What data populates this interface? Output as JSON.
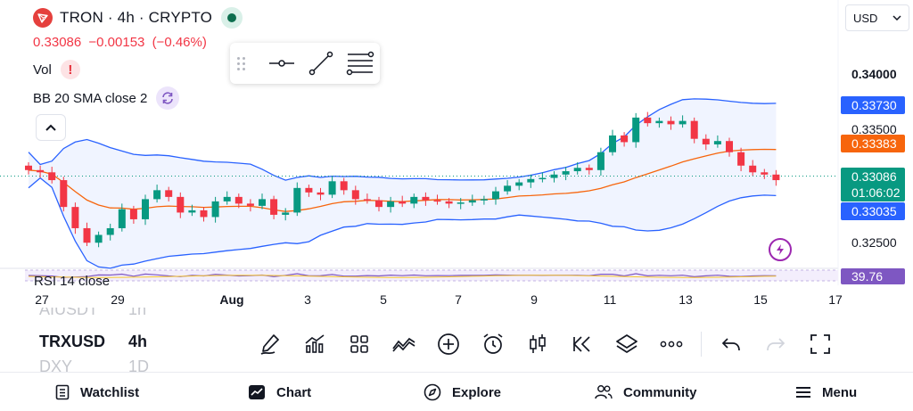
{
  "header": {
    "symbol_title": "TRON · 4h · CRYPTO",
    "last_price": "0.33086",
    "change": "−0.00153",
    "change_percent": "(−0.46%)",
    "currency": "USD"
  },
  "indicators": {
    "volume_label": "Vol",
    "bollinger_label": "BB 20 SMA close 2",
    "rsi_label": "RSI 14 close"
  },
  "price_axis": {
    "labels": [
      "0.34000",
      "0.33500",
      "0.32500"
    ],
    "tag_upper": "0.33730",
    "tag_basis": "0.33383",
    "tag_last": "0.33086",
    "tag_countdown": "01:06:02",
    "tag_lower": "0.33035",
    "tag_rsi": "39.76"
  },
  "time_axis": {
    "labels": [
      "27",
      "29",
      "Aug",
      "3",
      "5",
      "7",
      "9",
      "11",
      "13",
      "15",
      "17"
    ]
  },
  "symbol_picker": {
    "prev_symbol": "AIUSDT",
    "prev_interval": "1h",
    "active_symbol": "TRXUSD",
    "active_interval": "4h",
    "next_symbol": "DXY",
    "next_interval": "1D"
  },
  "bottom_toolbar": {
    "icons": [
      "pen-draw-icon",
      "indicators-icon",
      "layouts-icon",
      "compare-icon",
      "add-icon",
      "alert-icon",
      "chart-type-icon",
      "replay-icon",
      "layers-icon",
      "more-icon",
      "undo-icon",
      "redo-icon",
      "fullscreen-icon"
    ]
  },
  "nav": {
    "watchlist": "Watchlist",
    "chart": "Chart",
    "explore": "Explore",
    "community": "Community",
    "menu": "Menu"
  },
  "colors": {
    "up": "#089981",
    "down": "#f23645",
    "bb_band": "#2962ff",
    "bb_basis": "#f7650c",
    "rsi": "#7e57c2"
  },
  "chart_data": {
    "type": "candlestick",
    "title": "TRON · 4h · CRYPTO",
    "y_axis_ticks": [
      0.34,
      0.335,
      0.325
    ],
    "x_axis_ticks": [
      "27",
      "29",
      "Aug",
      "3",
      "5",
      "7",
      "9",
      "11",
      "13",
      "15",
      "17"
    ],
    "last_close": 0.33086,
    "overlays": [
      {
        "name": "BB 20 SMA close 2 upper",
        "last": 0.3373
      },
      {
        "name": "BB 20 SMA close 2 basis",
        "last": 0.33383
      },
      {
        "name": "BB 20 SMA close 2 lower",
        "last": 0.33035
      }
    ],
    "rsi_last": 39.76,
    "candles_close": [
      0.3314,
      0.3312,
      0.3305,
      0.3281,
      0.3262,
      0.3249,
      0.3256,
      0.3262,
      0.3279,
      0.327,
      0.3288,
      0.3296,
      0.329,
      0.3276,
      0.3278,
      0.3272,
      0.3286,
      0.329,
      0.3284,
      0.3282,
      0.3288,
      0.3274,
      0.3276,
      0.3298,
      0.3294,
      0.3292,
      0.3304,
      0.3296,
      0.3288,
      0.3287,
      0.3281,
      0.3286,
      0.3284,
      0.329,
      0.3287,
      0.3286,
      0.3284,
      0.3285,
      0.3287,
      0.3288,
      0.3295,
      0.33,
      0.3303,
      0.3306,
      0.3307,
      0.331,
      0.3313,
      0.3316,
      0.3314,
      0.333,
      0.3345,
      0.3339,
      0.3361,
      0.3356,
      0.3358,
      0.3355,
      0.3358,
      0.3342,
      0.3337,
      0.334,
      0.333,
      0.3318,
      0.3312,
      0.331,
      0.3305
    ]
  }
}
